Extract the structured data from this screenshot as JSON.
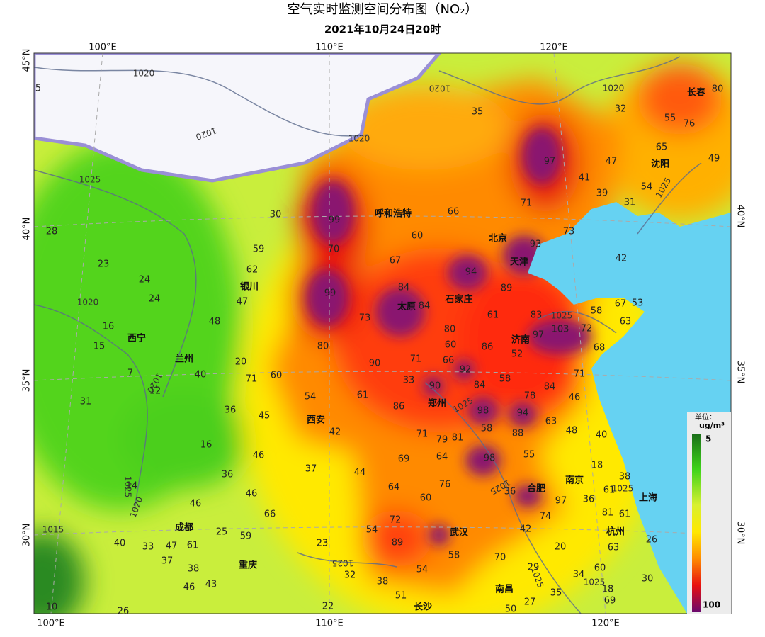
{
  "header": {
    "title": "空气实时监测空间分布图（NO₂）",
    "subtitle": "2021年10月24日20时"
  },
  "axes": {
    "top": [
      "100°E",
      "110°E",
      "120°E"
    ],
    "bottom": [
      "100°E",
      "110°E",
      "120°E"
    ],
    "left": [
      "45°N",
      "40°N",
      "35°N",
      "30°N"
    ],
    "right": [
      "40°N",
      "35°N",
      "30°N"
    ]
  },
  "cities": [
    "呼和浩特",
    "北京",
    "天津",
    "银川",
    "太原",
    "石家庄",
    "西宁",
    "兰州",
    "济南",
    "郑州",
    "西安",
    "合肥",
    "南京",
    "上海",
    "成都",
    "武汉",
    "杭州",
    "重庆",
    "南昌",
    "长沙",
    "长春",
    "沈阳"
  ],
  "stations": [
    99,
    70,
    99,
    30,
    59,
    62,
    47,
    48,
    35,
    97,
    71,
    66,
    60,
    67,
    84,
    84,
    73,
    80,
    90,
    71,
    33,
    90,
    66,
    92,
    60,
    80,
    61,
    94,
    93,
    89,
    83,
    97,
    103,
    72,
    68,
    86,
    52,
    58,
    84,
    71,
    84,
    78,
    98,
    94,
    63,
    88,
    58,
    81,
    79,
    71,
    86,
    61,
    54,
    60,
    71,
    20,
    40,
    45,
    36,
    42,
    46,
    37,
    44,
    69,
    64,
    98,
    55,
    48,
    40,
    46,
    76,
    64,
    60,
    72,
    89,
    54,
    58,
    54,
    51,
    38,
    32,
    23,
    22,
    70,
    42,
    20,
    29,
    35,
    27,
    50,
    34,
    60,
    63,
    81,
    61,
    61,
    36,
    97,
    74,
    36,
    18,
    38,
    30,
    26,
    69,
    18,
    41,
    47,
    39,
    31,
    73,
    42,
    58,
    67,
    53,
    63,
    65,
    54,
    55,
    76,
    80,
    49,
    32,
    28,
    23,
    24,
    24,
    16,
    15,
    7,
    12,
    31,
    16,
    14,
    36,
    46,
    66,
    46,
    25,
    59,
    61,
    47,
    33,
    40,
    37,
    38,
    46,
    43,
    10,
    26,
    5
  ],
  "isobars": [
    1020,
    1020,
    1020,
    1020,
    1025,
    1020,
    1020,
    1025,
    1025,
    1020,
    1015,
    1025,
    1025,
    1025,
    1025,
    1025,
    1025,
    1025,
    1020
  ],
  "legend": {
    "unit_title": "单位：",
    "unit": "ug/m³",
    "min": 5,
    "max": 100
  }
}
